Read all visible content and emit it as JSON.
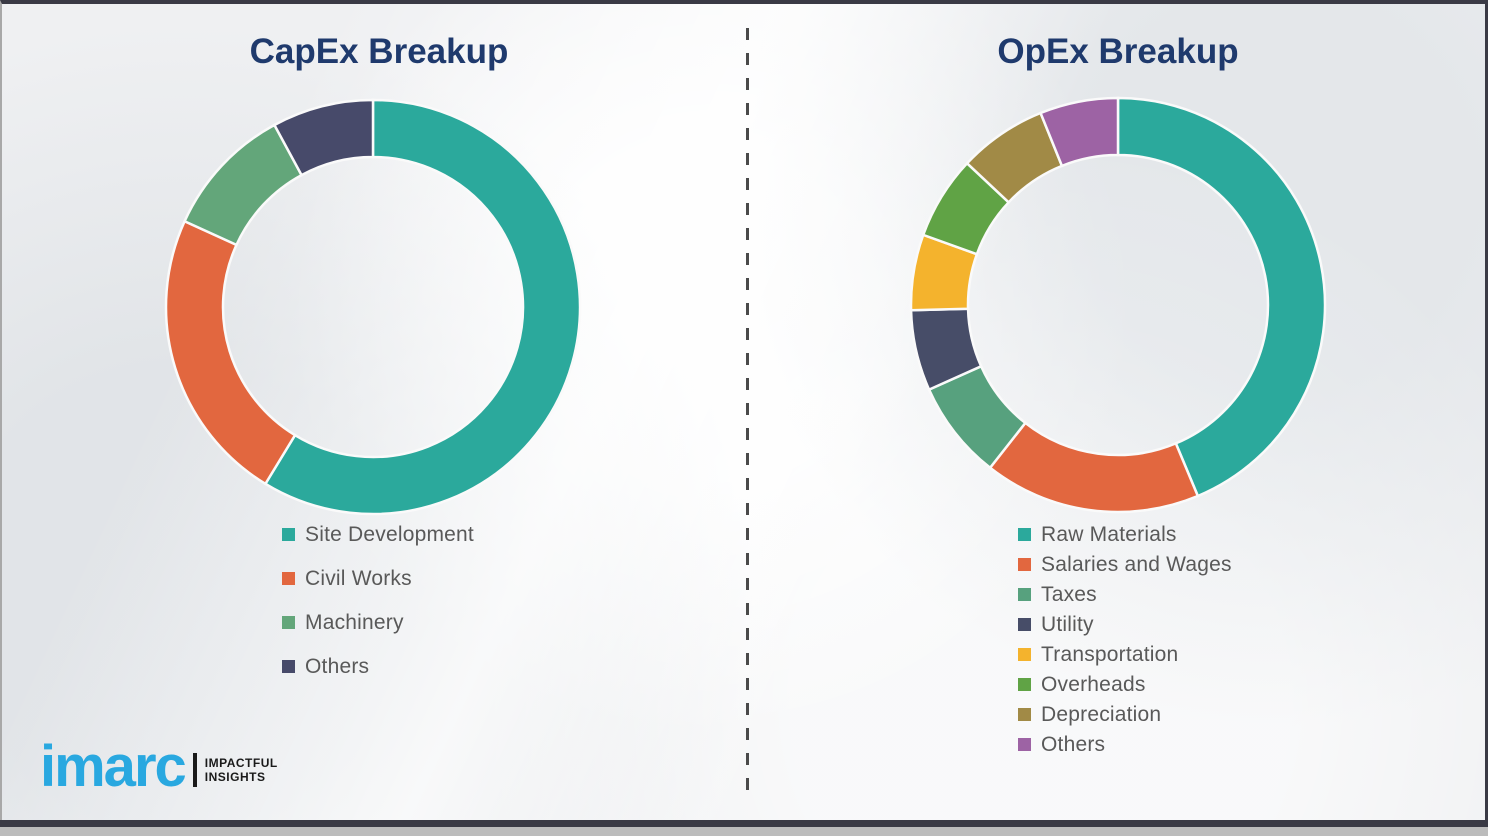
{
  "chart_data": [
    {
      "type": "pie",
      "subtype": "donut",
      "title": "CapEx Breakup",
      "labels": [
        "Site Development",
        "Civil Works",
        "Machinery",
        "Others"
      ],
      "values": [
        58.7,
        23.1,
        10.3,
        7.9
      ],
      "colors": [
        "#2BA99C",
        "#E2673F",
        "#63A67A",
        "#474A6A"
      ],
      "start_angle_deg": 0,
      "direction": "clockwise",
      "data_labels_shown": false,
      "legend_position": "below-left"
    },
    {
      "type": "pie",
      "subtype": "donut",
      "title": "OpEx Breakup",
      "labels": [
        "Raw Materials",
        "Salaries and Wages",
        "Taxes",
        "Utility",
        "Transportation",
        "Overheads",
        "Depreciation",
        "Others"
      ],
      "values": [
        43.7,
        16.9,
        7.7,
        6.3,
        5.9,
        6.5,
        6.9,
        6.1
      ],
      "colors": [
        "#2BA99C",
        "#E2673F",
        "#57A17E",
        "#474D68",
        "#F4B32D",
        "#60A345",
        "#A18A46",
        "#9D63A4"
      ],
      "start_angle_deg": 0,
      "direction": "clockwise",
      "data_labels_shown": false,
      "legend_position": "below-left"
    }
  ],
  "branding": {
    "logo_text": "imarc",
    "tagline_line1": "IMPACTFUL",
    "tagline_line2": "INSIGHTS",
    "logo_color": "#29A8E0"
  },
  "style": {
    "title_color": "#1F3A6D",
    "legend_text_color": "#595959",
    "divider_color": "#4A4A4A",
    "segment_gap_color": "#FAFAFA"
  }
}
